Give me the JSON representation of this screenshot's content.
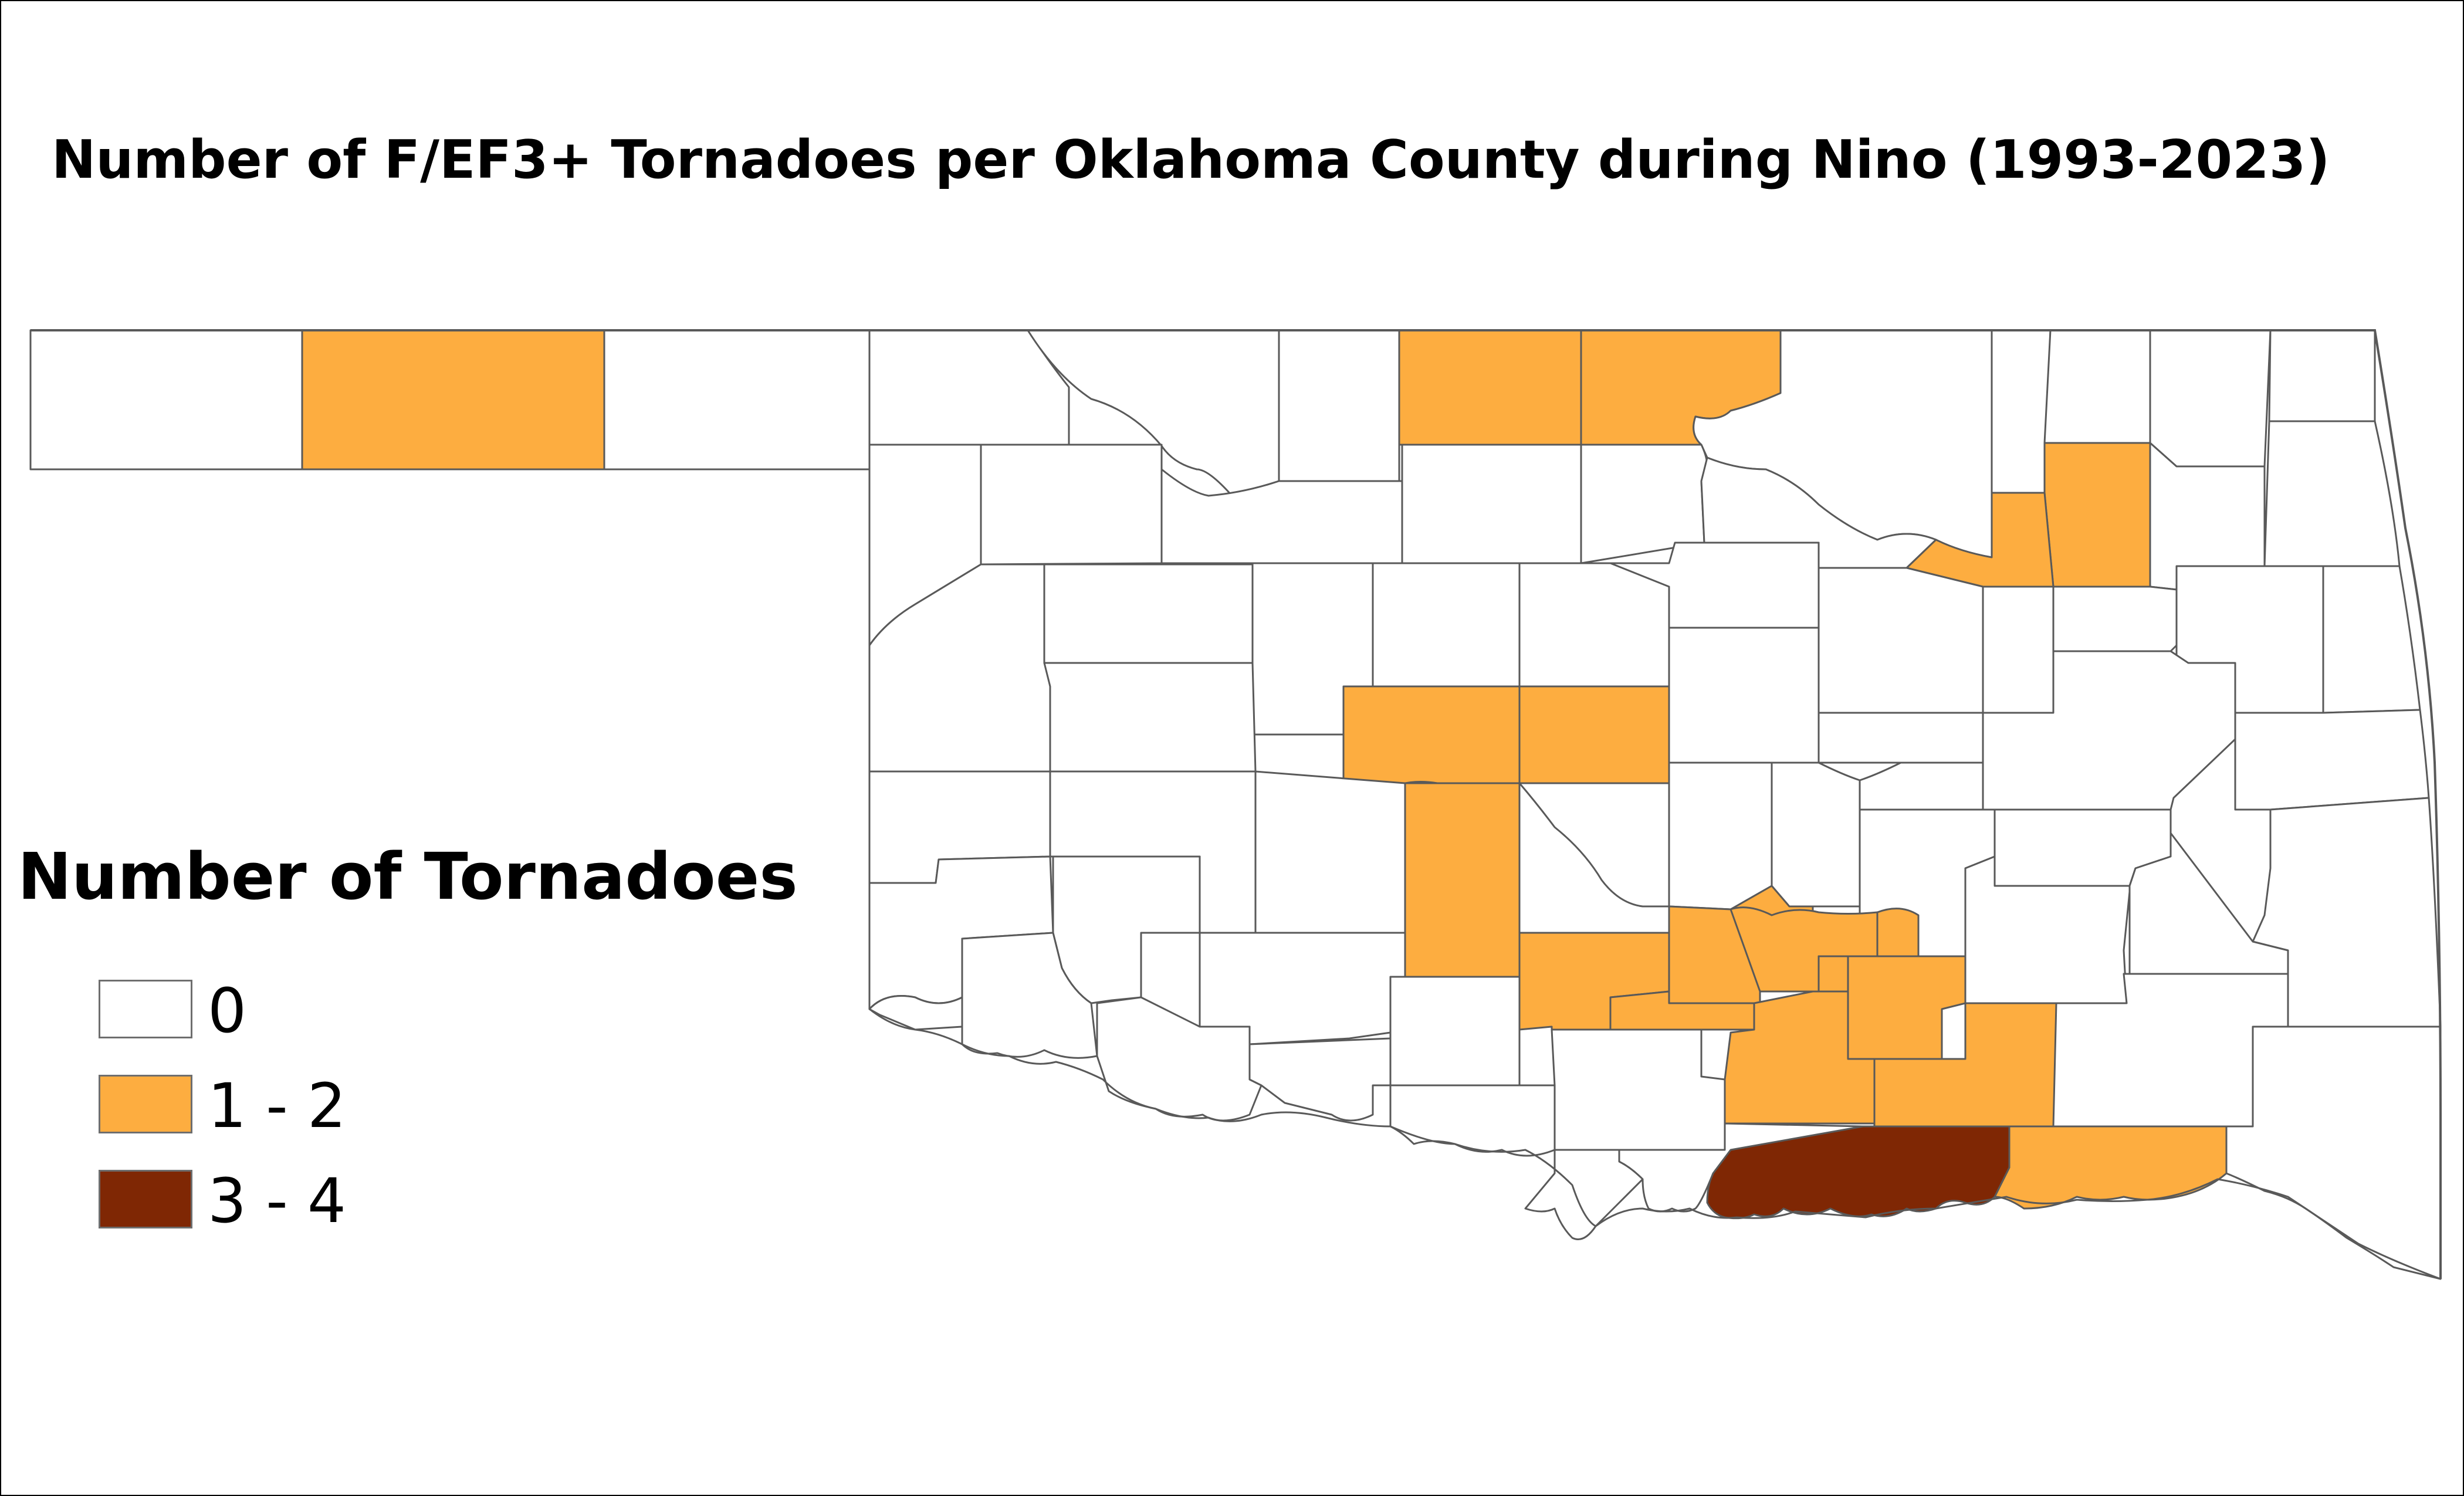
{
  "title": "Number of F/EF3+ Tornadoes per Oklahoma County during Nino (1993-2023)",
  "legend": {
    "title": "Number of Tornadoes",
    "items": [
      {
        "label": "0",
        "color": "#ffffff"
      },
      {
        "label": "1 - 2",
        "color": "#fdad40"
      },
      {
        "label": "3 - 4",
        "color": "#7f2704"
      }
    ]
  },
  "colors": {
    "outline": "#595959",
    "state_outline": "#404040"
  }
}
